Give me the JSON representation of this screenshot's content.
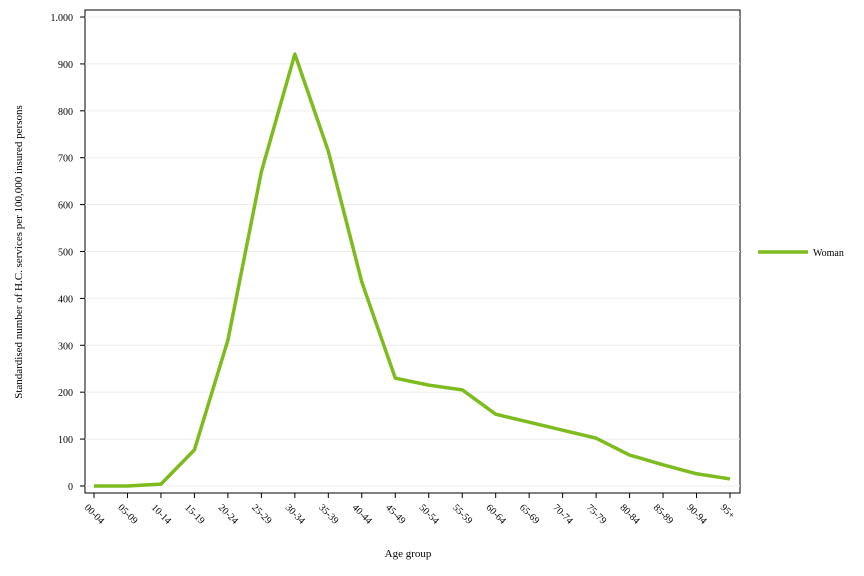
{
  "chart_data": {
    "type": "line",
    "x_label": "Age group",
    "y_label": "Standardised number of H.C. services per 100,000 insured persons",
    "categories": [
      "00-04",
      "05-09",
      "10-14",
      "15-19",
      "20-24",
      "25-29",
      "30-34",
      "35-39",
      "40-44",
      "45-49",
      "50-54",
      "55-59",
      "60-64",
      "65-69",
      "70-74",
      "75-79",
      "80-84",
      "85-89",
      "90-94",
      "95+"
    ],
    "series": [
      {
        "name": "Woman",
        "color": "#7dbb1f",
        "values": [
          0,
          0,
          4,
          77,
          311,
          670,
          921,
          714,
          435,
          230,
          215,
          205,
          153,
          136,
          119,
          102,
          66,
          45,
          26,
          15
        ]
      }
    ],
    "ylim": [
      -15,
      1015
    ],
    "yticks": [
      0,
      100,
      200,
      300,
      400,
      500,
      600,
      700,
      800,
      900,
      {
        "value": 1000,
        "label": "1.000"
      }
    ],
    "grid": true,
    "legend": "right"
  }
}
